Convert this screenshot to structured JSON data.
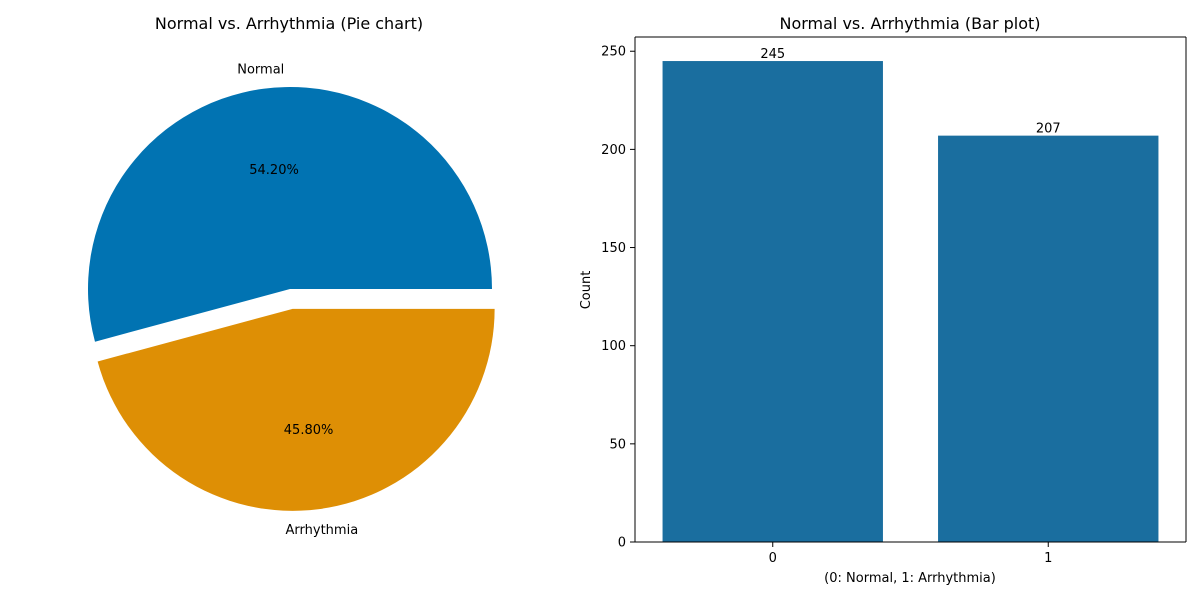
{
  "colors": {
    "normal": "#0173b2",
    "arrhythmia": "#de8f05",
    "bar": "#1a6e9f",
    "axis": "#000000"
  },
  "chart_data": [
    {
      "type": "pie",
      "title": "Normal vs. Arrhythmia (Pie chart)",
      "slices": [
        {
          "label": "Normal",
          "value": 54.2,
          "pct_label": "54.20%",
          "color_key": "normal",
          "exploded": false
        },
        {
          "label": "Arrhythmia",
          "value": 45.8,
          "pct_label": "45.80%",
          "color_key": "arrhythmia",
          "exploded": true
        }
      ]
    },
    {
      "type": "bar",
      "title": "Normal vs. Arrhythmia (Bar plot)",
      "categories": [
        "0",
        "1"
      ],
      "values": [
        245,
        207
      ],
      "value_labels": [
        "245",
        "207"
      ],
      "xlabel": "(0: Normal, 1: Arrhythmia)",
      "ylabel": "Count",
      "ylim": [
        0,
        257.25
      ],
      "yticks": [
        0,
        50,
        100,
        150,
        200,
        250
      ],
      "grid": false
    }
  ]
}
